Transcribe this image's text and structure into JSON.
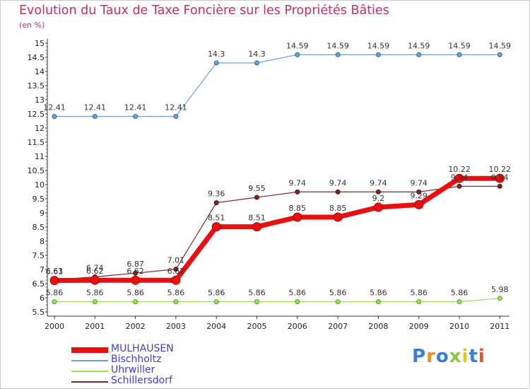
{
  "title": "Evolution du Taux de Taxe Foncière sur les Propriétés Bâties",
  "unit_label": "(en %)",
  "logo": {
    "text": "Proxiti",
    "colors": [
      "#3a7fd5",
      "#f28c1a",
      "#3a7fd5",
      "#8dc63f",
      "#e8c41a",
      "#3a7fd5",
      "#e8541a"
    ]
  },
  "chart_data": {
    "type": "line",
    "title": "Evolution du Taux de Taxe Foncière sur les Propriétés Bâties",
    "ylabel": "(en %)",
    "xlabel": "",
    "categories": [
      "2000",
      "2001",
      "2002",
      "2003",
      "2004",
      "2005",
      "2006",
      "2007",
      "2008",
      "2009",
      "2010",
      "2011"
    ],
    "ylim": [
      5.5,
      15
    ],
    "yticks": [
      "5.5",
      "6",
      "6.5",
      "7",
      "7.5",
      "8",
      "8.5",
      "9",
      "9.5",
      "10",
      "10.5",
      "11",
      "11.5",
      "12",
      "12.5",
      "13",
      "13.5",
      "14",
      "14.5",
      "15"
    ],
    "grid": false,
    "legend_position": "bottom-left",
    "series": [
      {
        "name": "MULHAUSEN",
        "color": "#e81010",
        "values": [
          6.61,
          6.62,
          6.62,
          6.62,
          8.51,
          8.51,
          8.85,
          8.85,
          9.2,
          9.29,
          10.22,
          10.22
        ],
        "labels": [
          "6.61",
          "6.62",
          "6.62",
          "6.62",
          "8.51",
          "8.51",
          "8.85",
          "8.85",
          "9.2",
          "9.29",
          "10.22",
          "10.22"
        ]
      },
      {
        "name": "Bischholtz",
        "color": "#6fa2cf",
        "values": [
          12.41,
          12.41,
          12.41,
          12.41,
          14.3,
          14.3,
          14.59,
          14.59,
          14.59,
          14.59,
          14.59,
          14.59
        ],
        "labels": [
          "12.41",
          "12.41",
          "12.41",
          "12.41",
          "14.3",
          "14.3",
          "14.59",
          "14.59",
          "14.59",
          "14.59",
          "14.59",
          "14.59"
        ]
      },
      {
        "name": "Uhrwiller",
        "color": "#99dd66",
        "values": [
          5.86,
          5.86,
          5.86,
          5.86,
          5.86,
          5.86,
          5.86,
          5.86,
          5.86,
          5.86,
          5.86,
          5.98
        ],
        "labels": [
          "5.86",
          "5.86",
          "5.86",
          "5.86",
          "5.86",
          "5.86",
          "5.86",
          "5.86",
          "5.86",
          "5.86",
          "5.86",
          "5.98"
        ]
      },
      {
        "name": "Schillersdorf",
        "color": "#7a2a2a",
        "values": [
          6.63,
          6.74,
          6.87,
          7.01,
          9.36,
          9.55,
          9.74,
          9.74,
          9.74,
          9.74,
          9.94,
          9.94
        ],
        "labels": [
          "6.63",
          "6.74",
          "6.87",
          "7.01",
          "9.36",
          "9.55",
          "9.74",
          "9.74",
          "9.74",
          "9.74",
          "9.94",
          "9.94"
        ]
      }
    ]
  }
}
